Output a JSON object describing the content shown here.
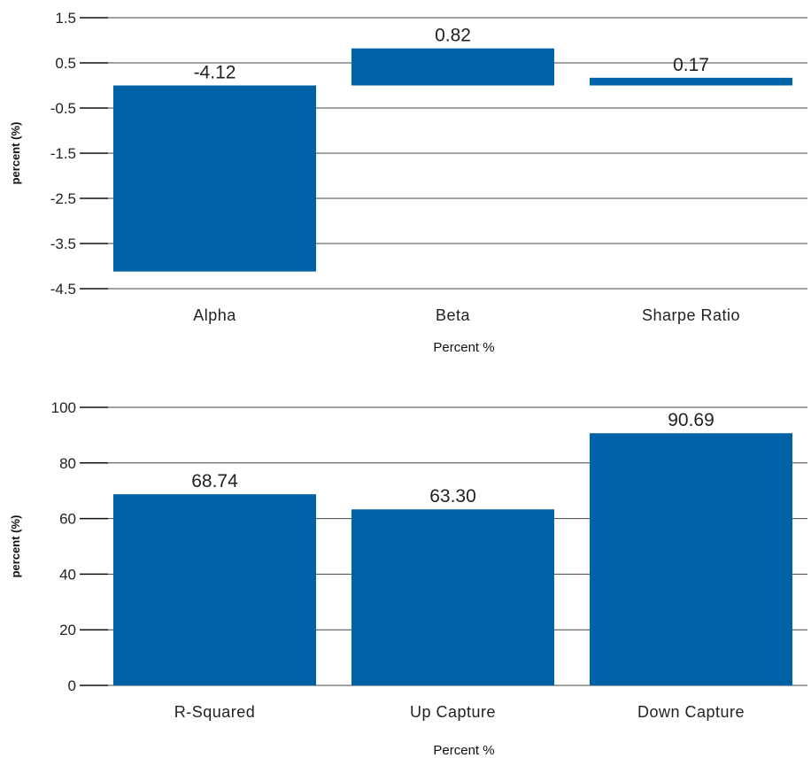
{
  "chart_data": [
    {
      "type": "bar",
      "categories": [
        "Alpha",
        "Beta",
        "Sharpe Ratio"
      ],
      "values": [
        -4.12,
        0.82,
        0.17
      ],
      "data_labels": [
        "-4.12",
        "0.82",
        "0.17"
      ],
      "xlabel": "Percent %",
      "ylabel": "percent (%)",
      "ylim": [
        -4.5,
        1.5
      ],
      "yticks": [
        1.5,
        0.5,
        -0.5,
        -1.5,
        -2.5,
        -3.5,
        -4.5
      ],
      "ytick_labels": [
        "1.5",
        "0.5",
        "-0.5",
        "-1.5",
        "-2.5",
        "-3.5",
        "-4.5"
      ],
      "grid": true,
      "color": "#0061a6"
    },
    {
      "type": "bar",
      "categories": [
        "R-Squared",
        "Up Capture",
        "Down Capture"
      ],
      "values": [
        68.74,
        63.3,
        90.69
      ],
      "data_labels": [
        "68.74",
        "63.30",
        "90.69"
      ],
      "xlabel": "Percent %",
      "ylabel": "percent (%)",
      "ylim": [
        0,
        100
      ],
      "yticks": [
        100,
        80,
        60,
        40,
        20,
        0
      ],
      "ytick_labels": [
        "100",
        "80",
        "60",
        "40",
        "20",
        "0"
      ],
      "grid": true,
      "color": "#0061a6"
    }
  ]
}
